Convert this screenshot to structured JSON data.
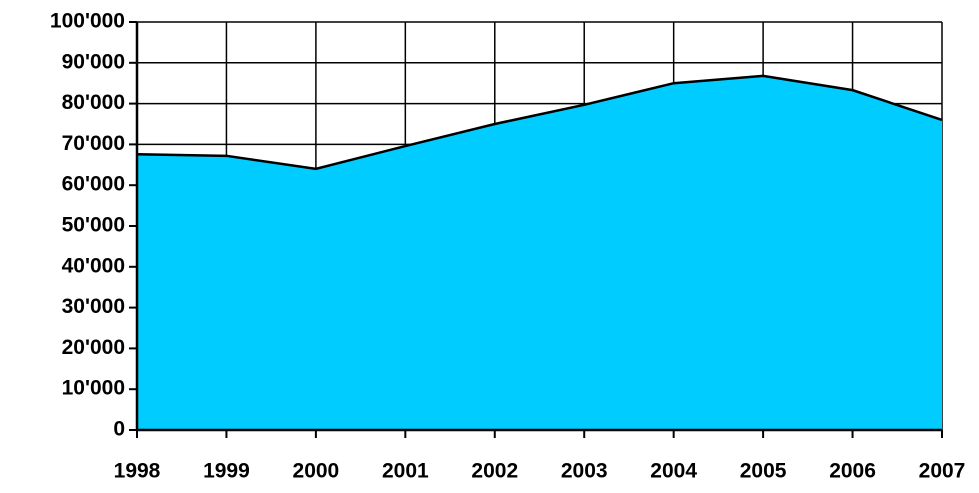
{
  "chart_data": {
    "type": "area",
    "x": [
      1998,
      1999,
      2000,
      2001,
      2002,
      2003,
      2004,
      2005,
      2006,
      2007
    ],
    "values": [
      67600,
      67200,
      64000,
      69600,
      75000,
      79700,
      85000,
      86800,
      83300,
      76000
    ],
    "color": "#00ccff",
    "xlim": [
      1998,
      2007
    ],
    "xticks": [
      1998,
      1999,
      2000,
      2001,
      2002,
      2003,
      2004,
      2005,
      2006,
      2007
    ],
    "ylim": [
      0,
      100000
    ],
    "yticks": [
      0,
      {
        "value": 10000,
        "label": "10'000"
      },
      {
        "value": 20000,
        "label": "20'000"
      },
      {
        "value": 30000,
        "label": "30'000"
      },
      {
        "value": 40000,
        "label": "40'000"
      },
      {
        "value": 50000,
        "label": "50'000"
      },
      {
        "value": 60000,
        "label": "60'000"
      },
      {
        "value": 70000,
        "label": "70'000"
      },
      {
        "value": 80000,
        "label": "80'000"
      },
      {
        "value": 90000,
        "label": "90'000"
      },
      {
        "value": 100000,
        "label": "100'000"
      }
    ],
    "grid": true
  }
}
